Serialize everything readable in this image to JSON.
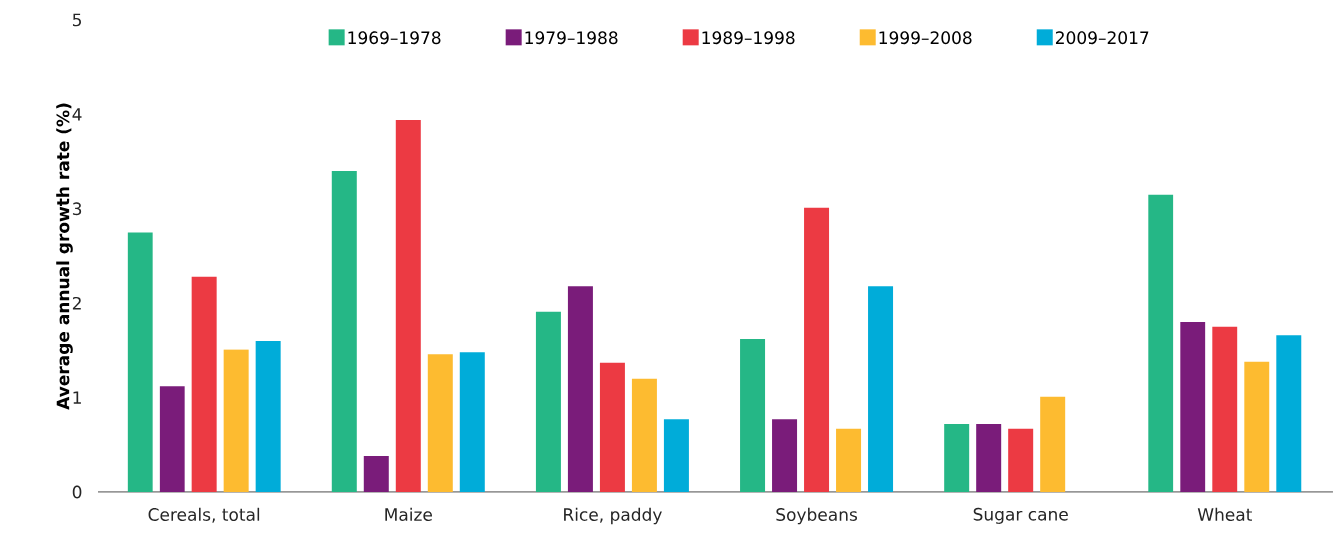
{
  "chart_data": {
    "type": "bar",
    "ylabel": "Average annual growth rate (%)",
    "categories": [
      "Cereals, total",
      "Maize",
      "Rice, paddy",
      "Soybeans",
      "Sugar cane",
      "Wheat"
    ],
    "series": [
      {
        "name": "1969–1978",
        "color": "#25b786",
        "values": [
          2.75,
          3.4,
          1.91,
          1.62,
          0.72,
          3.15
        ]
      },
      {
        "name": "1979–1988",
        "color": "#7a1c7a",
        "values": [
          1.12,
          0.38,
          2.18,
          0.77,
          0.72,
          1.8
        ]
      },
      {
        "name": "1989–1998",
        "color": "#ec3a43",
        "values": [
          2.28,
          3.94,
          1.37,
          3.01,
          0.67,
          1.75
        ]
      },
      {
        "name": "1999–2008",
        "color": "#fdbb30",
        "values": [
          1.51,
          1.46,
          1.2,
          0.67,
          1.01,
          1.38
        ]
      },
      {
        "name": "2009–2017",
        "color": "#00acd9",
        "values": [
          1.6,
          1.48,
          0.77,
          2.18,
          null,
          1.66
        ]
      }
    ],
    "ylim": [
      0,
      5
    ],
    "yticks": [
      0,
      1,
      2,
      3,
      4,
      5
    ],
    "grid": false,
    "legend": "top"
  }
}
